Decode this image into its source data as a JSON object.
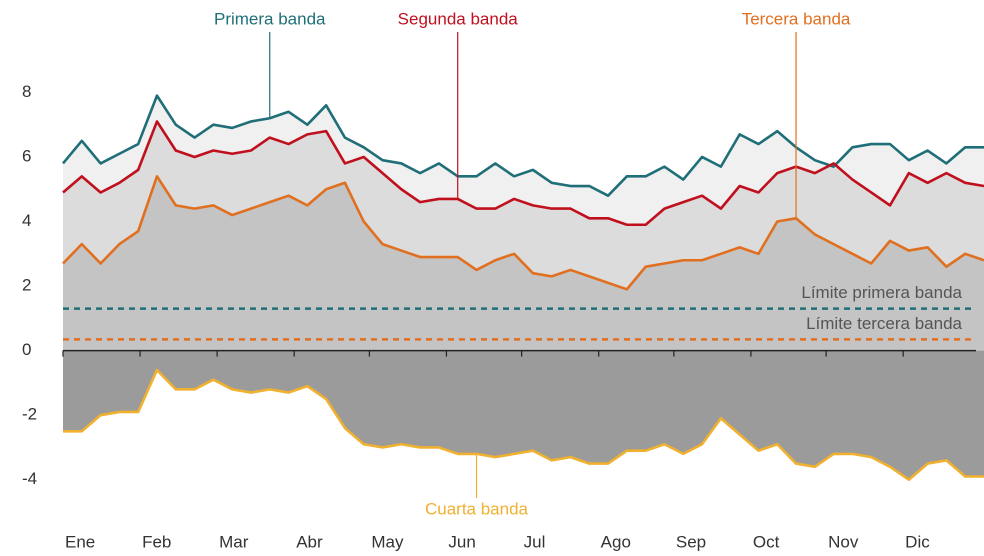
{
  "chart_data": {
    "type": "area",
    "x": [
      0,
      1,
      2,
      3,
      4,
      5,
      6,
      7,
      8,
      9,
      10,
      11,
      12,
      13,
      14,
      15,
      16,
      17,
      18,
      19,
      20,
      21,
      22,
      23,
      24,
      25,
      26,
      27,
      28,
      29,
      30,
      31,
      32,
      33,
      34,
      35,
      36,
      37,
      38,
      39,
      40,
      41,
      42,
      43,
      44,
      45,
      46,
      47,
      48,
      49
    ],
    "xlim": [
      0,
      49
    ],
    "xticks": [
      {
        "value": 0,
        "label": "Ene"
      },
      {
        "value": 4.1,
        "label": "Feb"
      },
      {
        "value": 8.2,
        "label": "Mar"
      },
      {
        "value": 12.3,
        "label": "Abr"
      },
      {
        "value": 16.3,
        "label": "May"
      },
      {
        "value": 20.4,
        "label": "Jun"
      },
      {
        "value": 24.4,
        "label": "Jul"
      },
      {
        "value": 28.5,
        "label": "Ago"
      },
      {
        "value": 32.5,
        "label": "Sep"
      },
      {
        "value": 36.6,
        "label": "Oct"
      },
      {
        "value": 40.6,
        "label": "Nov"
      },
      {
        "value": 44.7,
        "label": "Dic"
      }
    ],
    "ylim": [
      -5,
      9.5
    ],
    "yticks": [
      -4,
      -2,
      0,
      2,
      4,
      6,
      8
    ],
    "grid": false,
    "series": [
      {
        "name": "Primera banda",
        "color": "#1f6e78",
        "fill": "#f0f0f0",
        "values": [
          5.8,
          6.5,
          5.8,
          6.1,
          6.4,
          7.9,
          7.0,
          6.6,
          7.0,
          6.9,
          7.1,
          7.2,
          7.4,
          7.0,
          7.6,
          6.6,
          6.3,
          5.9,
          5.8,
          5.5,
          5.8,
          5.4,
          5.4,
          5.8,
          5.4,
          5.6,
          5.2,
          5.1,
          5.1,
          4.8,
          5.4,
          5.4,
          5.7,
          5.3,
          6.0,
          5.7,
          6.7,
          6.4,
          6.8,
          6.3,
          5.9,
          5.7,
          6.3,
          6.4,
          6.4,
          5.9,
          6.2,
          5.8,
          6.3,
          6.3
        ]
      },
      {
        "name": "Segunda banda",
        "color": "#c0101e",
        "fill": "#dcdcdc",
        "values": [
          4.9,
          5.4,
          4.9,
          5.2,
          5.6,
          7.1,
          6.2,
          6.0,
          6.2,
          6.1,
          6.2,
          6.6,
          6.4,
          6.7,
          6.8,
          5.8,
          6.0,
          5.5,
          5.0,
          4.6,
          4.7,
          4.7,
          4.4,
          4.4,
          4.7,
          4.5,
          4.4,
          4.4,
          4.1,
          4.1,
          3.9,
          3.9,
          4.4,
          4.6,
          4.8,
          4.4,
          5.1,
          4.9,
          5.5,
          5.7,
          5.5,
          5.8,
          5.3,
          4.9,
          4.5,
          5.5,
          5.2,
          5.5,
          5.2,
          5.1
        ]
      },
      {
        "name": "Tercera banda",
        "color": "#e07020",
        "fill": "#c4c4c4",
        "values": [
          2.7,
          3.3,
          2.7,
          3.3,
          3.7,
          5.4,
          4.5,
          4.4,
          4.5,
          4.2,
          4.4,
          4.6,
          4.8,
          4.5,
          5.0,
          5.2,
          4.0,
          3.3,
          3.1,
          2.9,
          2.9,
          2.9,
          2.5,
          2.8,
          3.0,
          2.4,
          2.3,
          2.5,
          2.3,
          2.1,
          1.9,
          2.6,
          2.7,
          2.8,
          2.8,
          3.0,
          3.2,
          3.0,
          4.0,
          4.1,
          3.6,
          3.3,
          3.0,
          2.7,
          3.4,
          3.1,
          3.2,
          2.6,
          3.0,
          2.8
        ]
      },
      {
        "name": "Cuarta banda",
        "color": "#f0b030",
        "fill": "#9b9b9b",
        "values": [
          -2.5,
          -2.5,
          -2.0,
          -1.9,
          -1.9,
          -0.6,
          -1.2,
          -1.2,
          -0.9,
          -1.2,
          -1.3,
          -1.2,
          -1.3,
          -1.1,
          -1.5,
          -2.4,
          -2.9,
          -3.0,
          -2.9,
          -3.0,
          -3.0,
          -3.2,
          -3.2,
          -3.3,
          -3.2,
          -3.1,
          -3.4,
          -3.3,
          -3.5,
          -3.5,
          -3.1,
          -3.1,
          -2.9,
          -3.2,
          -2.9,
          -2.1,
          -2.6,
          -3.1,
          -2.9,
          -3.5,
          -3.6,
          -3.2,
          -3.2,
          -3.3,
          -3.6,
          -4.0,
          -3.5,
          -3.4,
          -3.9,
          -3.9
        ]
      }
    ],
    "reference_lines": [
      {
        "label": "Límite primera banda",
        "value": 1.3,
        "color": "#1f6e78"
      },
      {
        "label": "Límite tercera banda",
        "value": 0.35,
        "color": "#e07020"
      }
    ]
  }
}
